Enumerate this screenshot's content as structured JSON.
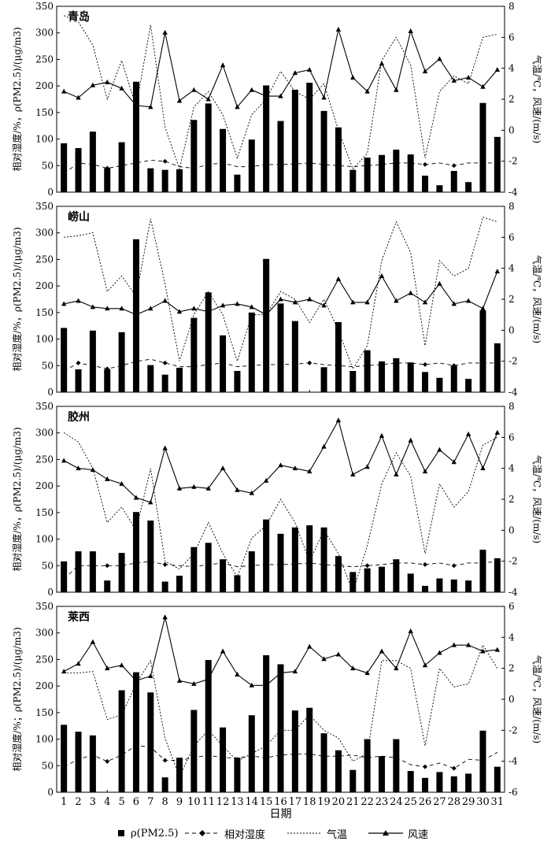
{
  "chart_data": {
    "type": "bar",
    "xlabel": "日期",
    "days": [
      1,
      2,
      3,
      4,
      5,
      6,
      7,
      8,
      9,
      10,
      11,
      12,
      13,
      14,
      15,
      16,
      17,
      18,
      19,
      20,
      21,
      22,
      23,
      24,
      25,
      26,
      27,
      28,
      29,
      30,
      31
    ],
    "legend": {
      "pm": "ρ(PM2.5)",
      "rh": "相对湿度",
      "temp": "气温",
      "wind": "风速"
    },
    "panels": [
      {
        "title": "青岛",
        "left_label": "相对湿度/%，ρ(PM2.5)/(μg/m3)",
        "right_label": "气温/℃，风速/(m/s)",
        "left_ylim": [
          0,
          350
        ],
        "left_ticks": [
          0,
          50,
          100,
          150,
          200,
          250,
          300,
          350
        ],
        "right_ylim": [
          -4,
          8
        ],
        "right_ticks": [
          -4,
          -2,
          0,
          2,
          4,
          6,
          8
        ],
        "pm": [
          92,
          83,
          114,
          45,
          94,
          208,
          45,
          42,
          43,
          136,
          167,
          119,
          33,
          99,
          201,
          134,
          193,
          206,
          153,
          122,
          42,
          65,
          70,
          80,
          71,
          31,
          13,
          40,
          19,
          168,
          104
        ],
        "rh": [
          35,
          55,
          52,
          45,
          50,
          55,
          60,
          58,
          48,
          45,
          52,
          55,
          48,
          48,
          52,
          52,
          53,
          55,
          52,
          50,
          48,
          50,
          52,
          55,
          55,
          52,
          55,
          50,
          55,
          55,
          55
        ],
        "temp": [
          7.4,
          7.0,
          5.5,
          2.0,
          4.5,
          1.5,
          6.8,
          0.2,
          -2.5,
          1.5,
          2.5,
          1.0,
          -1.8,
          1.0,
          2.0,
          3.8,
          2.5,
          2.0,
          3.0,
          0.0,
          -2.5,
          -1.5,
          4.5,
          6.0,
          4.2,
          -1.8,
          2.5,
          3.5,
          3.0,
          6.0,
          6.2
        ],
        "wind": [
          2.5,
          2.1,
          2.9,
          3.1,
          2.7,
          1.6,
          1.5,
          6.3,
          1.9,
          2.6,
          2.0,
          4.2,
          1.5,
          2.6,
          2.2,
          2.2,
          3.7,
          3.9,
          2.1,
          6.5,
          3.4,
          2.5,
          4.3,
          2.6,
          6.4,
          3.8,
          4.6,
          3.2,
          3.4,
          2.8,
          3.9
        ]
      },
      {
        "title": "崂山",
        "left_label": "相对湿度/%，ρ(PM2.5)/(μg/m3)",
        "right_label": "气温/℃，风速/(m/s)",
        "left_ylim": [
          0,
          350
        ],
        "left_ticks": [
          0,
          50,
          100,
          150,
          200,
          250,
          300,
          350
        ],
        "right_ylim": [
          -4,
          8
        ],
        "right_ticks": [
          -4,
          -2,
          0,
          2,
          4,
          6,
          8
        ],
        "pm": [
          121,
          43,
          116,
          43,
          113,
          288,
          51,
          33,
          46,
          140,
          188,
          107,
          40,
          150,
          251,
          167,
          134,
          0,
          47,
          132,
          40,
          79,
          58,
          64,
          56,
          38,
          27,
          50,
          25,
          154,
          92
        ],
        "rh": [
          40,
          55,
          50,
          44,
          50,
          58,
          62,
          55,
          48,
          48,
          52,
          55,
          48,
          50,
          52,
          52,
          53,
          55,
          52,
          50,
          48,
          50,
          52,
          55,
          55,
          52,
          55,
          50,
          55,
          55,
          55
        ],
        "temp": [
          6.0,
          6.1,
          6.3,
          2.5,
          3.5,
          2.2,
          7.2,
          3.0,
          -2.0,
          1.0,
          2.5,
          1.0,
          -2.0,
          1.0,
          1.0,
          2.5,
          2.0,
          0.5,
          2.0,
          0.0,
          -2.5,
          -1.0,
          4.5,
          7.0,
          5.0,
          -1.0,
          4.5,
          3.5,
          4.0,
          7.3,
          7.0
        ],
        "wind": [
          1.7,
          1.9,
          1.5,
          1.4,
          1.4,
          1.0,
          1.4,
          1.9,
          1.2,
          1.4,
          1.2,
          1.6,
          1.7,
          1.5,
          1.0,
          2.0,
          1.8,
          2.0,
          1.6,
          3.3,
          1.8,
          1.8,
          3.5,
          1.9,
          2.4,
          1.8,
          3.0,
          1.7,
          1.9,
          1.4,
          3.8
        ]
      },
      {
        "title": "胶州",
        "left_label": "相对湿度/%，ρ(PM2.5)/(μg/m3)",
        "right_label": "气温/℃，风速/(m/s)",
        "left_ylim": [
          0,
          350
        ],
        "left_ticks": [
          0,
          50,
          100,
          150,
          200,
          250,
          300,
          350
        ],
        "right_ylim": [
          -4,
          8
        ],
        "right_ticks": [
          -4,
          -2,
          0,
          2,
          4,
          6,
          8
        ],
        "pm": [
          58,
          77,
          77,
          22,
          74,
          151,
          135,
          20,
          31,
          85,
          93,
          62,
          32,
          77,
          137,
          110,
          122,
          126,
          122,
          68,
          38,
          45,
          48,
          62,
          35,
          12,
          26,
          24,
          22,
          80,
          64
        ],
        "rh": [
          25,
          50,
          50,
          50,
          50,
          55,
          58,
          52,
          50,
          48,
          52,
          55,
          48,
          50,
          52,
          52,
          53,
          55,
          52,
          50,
          48,
          50,
          52,
          55,
          55,
          52,
          55,
          50,
          55,
          55,
          58
        ],
        "temp": [
          6.3,
          5.7,
          4.0,
          0.5,
          1.5,
          0.0,
          4.0,
          -2.0,
          -2.5,
          -1.5,
          0.5,
          -1.5,
          -3.0,
          -0.5,
          0.3,
          2.0,
          0.5,
          -2.0,
          0.0,
          -1.5,
          -4.0,
          -1.0,
          3.0,
          5.0,
          3.5,
          -1.5,
          3.0,
          1.5,
          2.5,
          5.5,
          6.0
        ],
        "wind": [
          4.5,
          4.0,
          3.9,
          3.3,
          3.0,
          2.1,
          1.8,
          5.3,
          2.7,
          2.8,
          2.7,
          4.0,
          2.6,
          2.4,
          3.2,
          4.2,
          4.0,
          3.8,
          5.4,
          7.1,
          3.6,
          4.1,
          6.1,
          3.6,
          5.8,
          3.8,
          5.2,
          4.4,
          6.2,
          4.0,
          6.3
        ]
      },
      {
        "title": "莱西",
        "left_label": "相对湿度/%；ρ(PM2.5)/(μg/m3)",
        "right_label": "气温/℃，风速/(m/s)",
        "left_ylim": [
          0,
          350
        ],
        "left_ticks": [
          0,
          50,
          100,
          150,
          200,
          250,
          300,
          350
        ],
        "right_ylim": [
          -6,
          6
        ],
        "right_ticks": [
          -6,
          -4,
          -2,
          0,
          2,
          4,
          6
        ],
        "pm": [
          127,
          114,
          107,
          0,
          192,
          226,
          188,
          28,
          65,
          155,
          249,
          122,
          65,
          145,
          258,
          241,
          154,
          159,
          111,
          79,
          42,
          100,
          68,
          100,
          40,
          27,
          38,
          30,
          35,
          116,
          48
        ],
        "rh": [
          48,
          62,
          70,
          58,
          70,
          88,
          85,
          60,
          60,
          65,
          70,
          65,
          65,
          68,
          65,
          70,
          72,
          72,
          68,
          68,
          70,
          65,
          68,
          65,
          52,
          48,
          55,
          45,
          62,
          60,
          75
        ],
        "temp": [
          1.7,
          1.7,
          1.8,
          -1.3,
          -1.0,
          1.0,
          2.5,
          -2.5,
          -5.0,
          -3.0,
          -2.0,
          -3.0,
          -4.0,
          -3.5,
          -3.0,
          -2.0,
          -2.0,
          -1.0,
          -2.0,
          -2.5,
          -4.0,
          -3.5,
          2.5,
          2.5,
          2.0,
          -3.0,
          2.0,
          0.8,
          1.0,
          3.5,
          2.0
        ],
        "wind": [
          1.8,
          2.3,
          3.7,
          2.0,
          2.2,
          1.2,
          1.5,
          5.3,
          1.2,
          1.0,
          1.3,
          3.1,
          1.6,
          0.9,
          0.9,
          1.7,
          1.8,
          3.4,
          2.6,
          2.9,
          2.0,
          1.7,
          3.1,
          2.0,
          4.4,
          2.2,
          3.0,
          3.5,
          3.5,
          3.1,
          3.2
        ]
      }
    ]
  }
}
